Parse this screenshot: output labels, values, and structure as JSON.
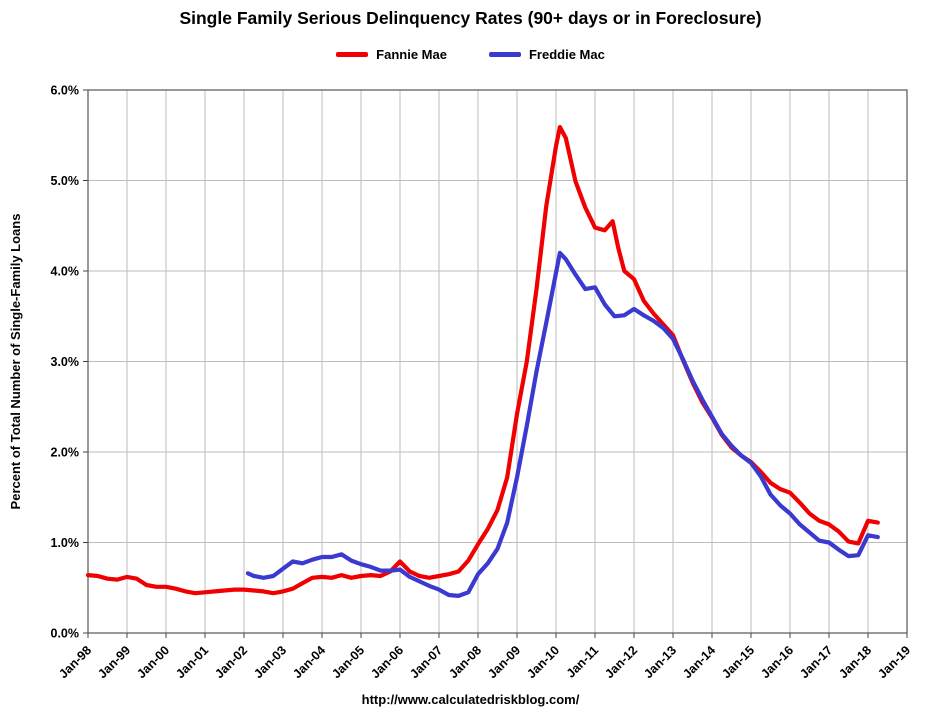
{
  "chart_data": {
    "type": "line",
    "title": "Single Family Serious Delinquency Rates (90+ days or in Foreclosure)",
    "ylabel": "Percent of Total Number of Single-Family Loans",
    "footer": "http://www.calculatedriskblog.com/",
    "xlim": [
      1998,
      2019
    ],
    "ylim": [
      0,
      6
    ],
    "grid": true,
    "legend_position": "top-center",
    "xticks": [
      {
        "x": 1998,
        "label": "Jan-98"
      },
      {
        "x": 1999,
        "label": "Jan-99"
      },
      {
        "x": 2000,
        "label": "Jan-00"
      },
      {
        "x": 2001,
        "label": "Jan-01"
      },
      {
        "x": 2002,
        "label": "Jan-02"
      },
      {
        "x": 2003,
        "label": "Jan-03"
      },
      {
        "x": 2004,
        "label": "Jan-04"
      },
      {
        "x": 2005,
        "label": "Jan-05"
      },
      {
        "x": 2006,
        "label": "Jan-06"
      },
      {
        "x": 2007,
        "label": "Jan-07"
      },
      {
        "x": 2008,
        "label": "Jan-08"
      },
      {
        "x": 2009,
        "label": "Jan-09"
      },
      {
        "x": 2010,
        "label": "Jan-10"
      },
      {
        "x": 2011,
        "label": "Jan-11"
      },
      {
        "x": 2012,
        "label": "Jan-12"
      },
      {
        "x": 2013,
        "label": "Jan-13"
      },
      {
        "x": 2014,
        "label": "Jan-14"
      },
      {
        "x": 2015,
        "label": "Jan-15"
      },
      {
        "x": 2016,
        "label": "Jan-16"
      },
      {
        "x": 2017,
        "label": "Jan-17"
      },
      {
        "x": 2018,
        "label": "Jan-18"
      },
      {
        "x": 2019,
        "label": "Jan-19"
      }
    ],
    "yticks": [
      {
        "y": 0,
        "label": "0.0%"
      },
      {
        "y": 1,
        "label": "1.0%"
      },
      {
        "y": 2,
        "label": "2.0%"
      },
      {
        "y": 3,
        "label": "3.0%"
      },
      {
        "y": 4,
        "label": "4.0%"
      },
      {
        "y": 5,
        "label": "5.0%"
      },
      {
        "y": 6,
        "label": "6.0%"
      }
    ],
    "series": [
      {
        "name": "Fannie Mae",
        "color": "#f00000",
        "points": [
          [
            1998.0,
            0.64
          ],
          [
            1998.25,
            0.63
          ],
          [
            1998.5,
            0.6
          ],
          [
            1998.75,
            0.59
          ],
          [
            1999.0,
            0.62
          ],
          [
            1999.25,
            0.6
          ],
          [
            1999.5,
            0.53
          ],
          [
            1999.75,
            0.51
          ],
          [
            2000.0,
            0.51
          ],
          [
            2000.25,
            0.49
          ],
          [
            2000.5,
            0.46
          ],
          [
            2000.75,
            0.44
          ],
          [
            2001.0,
            0.45
          ],
          [
            2001.25,
            0.46
          ],
          [
            2001.5,
            0.47
          ],
          [
            2001.75,
            0.48
          ],
          [
            2002.0,
            0.48
          ],
          [
            2002.25,
            0.47
          ],
          [
            2002.5,
            0.46
          ],
          [
            2002.75,
            0.44
          ],
          [
            2003.0,
            0.46
          ],
          [
            2003.25,
            0.49
          ],
          [
            2003.5,
            0.55
          ],
          [
            2003.75,
            0.61
          ],
          [
            2004.0,
            0.62
          ],
          [
            2004.25,
            0.61
          ],
          [
            2004.5,
            0.64
          ],
          [
            2004.75,
            0.61
          ],
          [
            2005.0,
            0.63
          ],
          [
            2005.25,
            0.64
          ],
          [
            2005.5,
            0.63
          ],
          [
            2005.75,
            0.68
          ],
          [
            2006.0,
            0.79
          ],
          [
            2006.25,
            0.68
          ],
          [
            2006.5,
            0.63
          ],
          [
            2006.75,
            0.61
          ],
          [
            2007.0,
            0.63
          ],
          [
            2007.25,
            0.65
          ],
          [
            2007.5,
            0.68
          ],
          [
            2007.75,
            0.8
          ],
          [
            2008.0,
            0.98
          ],
          [
            2008.25,
            1.15
          ],
          [
            2008.5,
            1.36
          ],
          [
            2008.75,
            1.72
          ],
          [
            2009.0,
            2.42
          ],
          [
            2009.25,
            3.0
          ],
          [
            2009.5,
            3.8
          ],
          [
            2009.75,
            4.72
          ],
          [
            2010.0,
            5.38
          ],
          [
            2010.1,
            5.59
          ],
          [
            2010.25,
            5.47
          ],
          [
            2010.5,
            4.99
          ],
          [
            2010.75,
            4.7
          ],
          [
            2011.0,
            4.48
          ],
          [
            2011.25,
            4.45
          ],
          [
            2011.45,
            4.55
          ],
          [
            2011.6,
            4.25
          ],
          [
            2011.75,
            4.0
          ],
          [
            2012.0,
            3.91
          ],
          [
            2012.25,
            3.67
          ],
          [
            2012.5,
            3.53
          ],
          [
            2012.75,
            3.41
          ],
          [
            2013.0,
            3.29
          ],
          [
            2013.25,
            3.02
          ],
          [
            2013.5,
            2.77
          ],
          [
            2013.75,
            2.55
          ],
          [
            2014.0,
            2.38
          ],
          [
            2014.25,
            2.19
          ],
          [
            2014.5,
            2.05
          ],
          [
            2014.75,
            1.96
          ],
          [
            2015.0,
            1.89
          ],
          [
            2015.25,
            1.78
          ],
          [
            2015.5,
            1.66
          ],
          [
            2015.75,
            1.59
          ],
          [
            2016.0,
            1.55
          ],
          [
            2016.25,
            1.44
          ],
          [
            2016.5,
            1.32
          ],
          [
            2016.75,
            1.24
          ],
          [
            2017.0,
            1.2
          ],
          [
            2017.25,
            1.12
          ],
          [
            2017.5,
            1.01
          ],
          [
            2017.75,
            0.99
          ],
          [
            2018.0,
            1.24
          ],
          [
            2018.25,
            1.22
          ]
        ]
      },
      {
        "name": "Freddie Mac",
        "color": "#3a3ad0",
        "points": [
          [
            2002.1,
            0.66
          ],
          [
            2002.25,
            0.63
          ],
          [
            2002.5,
            0.61
          ],
          [
            2002.75,
            0.63
          ],
          [
            2003.0,
            0.71
          ],
          [
            2003.25,
            0.79
          ],
          [
            2003.5,
            0.77
          ],
          [
            2003.75,
            0.81
          ],
          [
            2004.0,
            0.84
          ],
          [
            2004.25,
            0.84
          ],
          [
            2004.5,
            0.87
          ],
          [
            2004.75,
            0.8
          ],
          [
            2005.0,
            0.76
          ],
          [
            2005.25,
            0.73
          ],
          [
            2005.5,
            0.69
          ],
          [
            2005.75,
            0.69
          ],
          [
            2006.0,
            0.7
          ],
          [
            2006.25,
            0.62
          ],
          [
            2006.5,
            0.57
          ],
          [
            2006.75,
            0.52
          ],
          [
            2007.0,
            0.48
          ],
          [
            2007.25,
            0.42
          ],
          [
            2007.5,
            0.41
          ],
          [
            2007.75,
            0.45
          ],
          [
            2008.0,
            0.65
          ],
          [
            2008.25,
            0.77
          ],
          [
            2008.5,
            0.93
          ],
          [
            2008.75,
            1.22
          ],
          [
            2009.0,
            1.72
          ],
          [
            2009.25,
            2.29
          ],
          [
            2009.5,
            2.89
          ],
          [
            2009.75,
            3.43
          ],
          [
            2010.0,
            3.98
          ],
          [
            2010.1,
            4.2
          ],
          [
            2010.25,
            4.13
          ],
          [
            2010.5,
            3.96
          ],
          [
            2010.75,
            3.8
          ],
          [
            2011.0,
            3.82
          ],
          [
            2011.25,
            3.63
          ],
          [
            2011.5,
            3.5
          ],
          [
            2011.75,
            3.51
          ],
          [
            2012.0,
            3.58
          ],
          [
            2012.25,
            3.51
          ],
          [
            2012.5,
            3.45
          ],
          [
            2012.75,
            3.37
          ],
          [
            2013.0,
            3.25
          ],
          [
            2013.25,
            3.03
          ],
          [
            2013.5,
            2.79
          ],
          [
            2013.75,
            2.58
          ],
          [
            2014.0,
            2.39
          ],
          [
            2014.25,
            2.2
          ],
          [
            2014.5,
            2.07
          ],
          [
            2014.75,
            1.96
          ],
          [
            2015.0,
            1.88
          ],
          [
            2015.25,
            1.73
          ],
          [
            2015.5,
            1.53
          ],
          [
            2015.75,
            1.41
          ],
          [
            2016.0,
            1.32
          ],
          [
            2016.25,
            1.2
          ],
          [
            2016.5,
            1.11
          ],
          [
            2016.75,
            1.02
          ],
          [
            2017.0,
            1.0
          ],
          [
            2017.25,
            0.92
          ],
          [
            2017.5,
            0.85
          ],
          [
            2017.75,
            0.86
          ],
          [
            2018.0,
            1.08
          ],
          [
            2018.25,
            1.06
          ]
        ]
      }
    ]
  }
}
